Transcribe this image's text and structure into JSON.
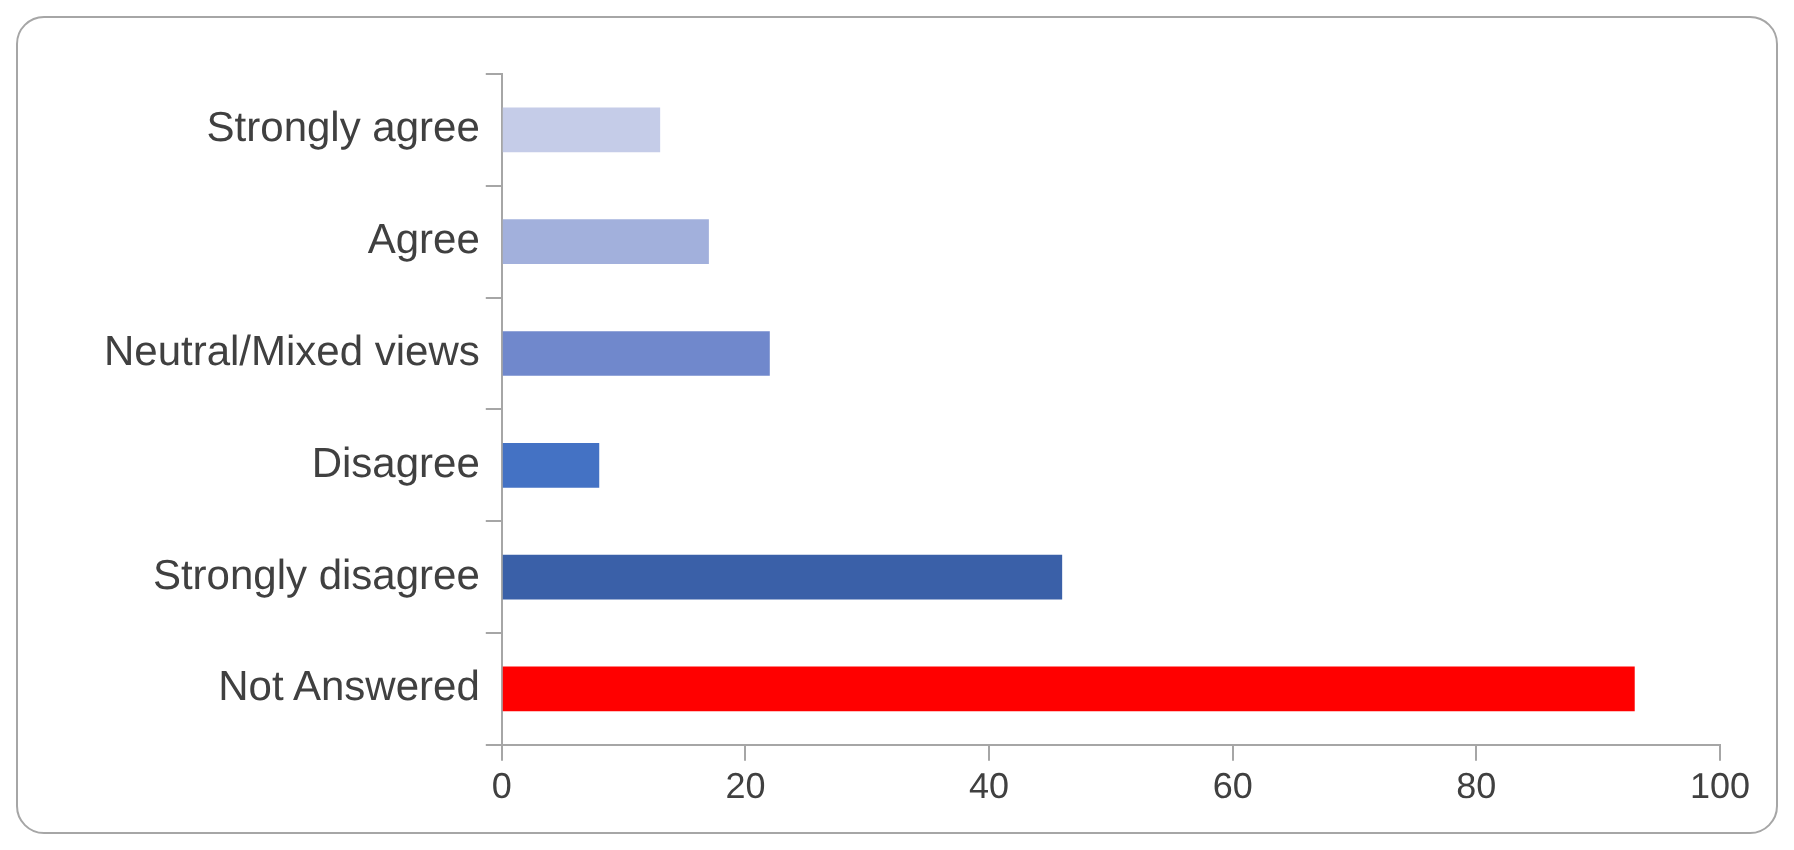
{
  "chart_data": {
    "type": "bar",
    "orientation": "horizontal",
    "categories": [
      "Strongly agree",
      "Agree",
      "Neutral/Mixed views",
      "Disagree",
      "Strongly disagree",
      "Not Answered"
    ],
    "values": [
      13,
      17,
      22,
      8,
      46,
      93
    ],
    "colors": [
      "#c5cce8",
      "#a2b0dc",
      "#7088cc",
      "#4472c4",
      "#3a60a8",
      "#ff0000"
    ],
    "xlim": [
      0,
      100
    ],
    "xticks": [
      0,
      20,
      40,
      60,
      80,
      100
    ],
    "grid": false,
    "legend": false
  }
}
